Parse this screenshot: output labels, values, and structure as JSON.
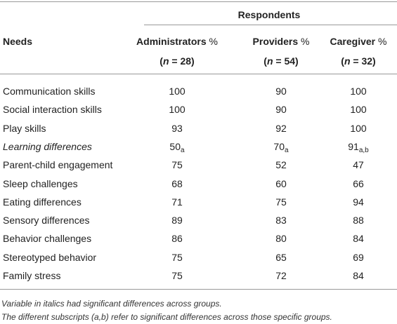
{
  "table": {
    "group_header": "Respondents",
    "first_header": "Needs",
    "columns": [
      {
        "label": "Administrators",
        "unit": "%",
        "n_parts": [
          "(",
          "n",
          " = 28)"
        ]
      },
      {
        "label": "Providers",
        "unit": "%",
        "n_parts": [
          "(",
          "n",
          " = 54)"
        ]
      },
      {
        "label": "Caregiver",
        "unit": "%",
        "n_parts": [
          "(",
          "n",
          " = 32)"
        ]
      }
    ],
    "rows": [
      {
        "label": "Communication skills",
        "cells": [
          {
            "value": 100
          },
          {
            "value": 90
          },
          {
            "value": 100
          }
        ]
      },
      {
        "label": "Social interaction skills",
        "cells": [
          {
            "value": 100
          },
          {
            "value": 90
          },
          {
            "value": 100
          }
        ]
      },
      {
        "label": "Play skills",
        "cells": [
          {
            "value": 93
          },
          {
            "value": 92
          },
          {
            "value": 100
          }
        ]
      },
      {
        "label": "Learning differences",
        "italic": true,
        "cells": [
          {
            "value": 50,
            "subscript": "a"
          },
          {
            "value": 70,
            "subscript": "a"
          },
          {
            "value": 91,
            "subscript": "a,b"
          }
        ]
      },
      {
        "label": "Parent-child engagement",
        "cells": [
          {
            "value": 75
          },
          {
            "value": 52
          },
          {
            "value": 47
          }
        ]
      },
      {
        "label": "Sleep challenges",
        "cells": [
          {
            "value": 68
          },
          {
            "value": 60
          },
          {
            "value": 66
          }
        ]
      },
      {
        "label": "Eating differences",
        "cells": [
          {
            "value": 71
          },
          {
            "value": 75
          },
          {
            "value": 94
          }
        ]
      },
      {
        "label": "Sensory differences",
        "cells": [
          {
            "value": 89
          },
          {
            "value": 83
          },
          {
            "value": 88
          }
        ]
      },
      {
        "label": "Behavior challenges",
        "cells": [
          {
            "value": 86
          },
          {
            "value": 80
          },
          {
            "value": 84
          }
        ]
      },
      {
        "label": "Stereotyped behavior",
        "cells": [
          {
            "value": 75
          },
          {
            "value": 65
          },
          {
            "value": 69
          }
        ]
      },
      {
        "label": "Family stress",
        "cells": [
          {
            "value": 75
          },
          {
            "value": 72
          },
          {
            "value": 84
          }
        ]
      }
    ],
    "footnotes": [
      "Variable in italics had significant differences across groups.",
      "The different subscripts (a,b) refer to significant differences across those specific groups."
    ]
  }
}
